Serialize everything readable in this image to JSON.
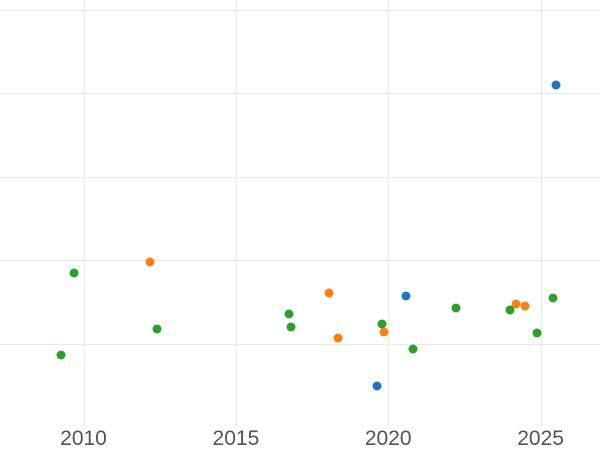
{
  "chart_data": {
    "type": "scatter",
    "title": "",
    "xlabel": "",
    "ylabel": "",
    "grid": true,
    "legend": "none",
    "background_color": "#ffffff",
    "gridline_color": "#e9e9e9",
    "tick_label_color": "#545454",
    "x_ticks": [
      {
        "value": 2010,
        "label": "2010"
      },
      {
        "value": 2015,
        "label": "2015"
      },
      {
        "value": 2020,
        "label": "2020"
      },
      {
        "value": 2025,
        "label": "2025"
      }
    ],
    "y_tick_labels": [],
    "y_axis_note": "y-axis tick labels not visible (cropped out of frame); y values given in gridline units, bottom visible gridline = 0, one unit per gridline step",
    "x_range": [
      2007.26,
      2026.95
    ],
    "y_range": [
      -0.99,
      4.12
    ],
    "y_gridlines": [
      0,
      1,
      2,
      3,
      4
    ],
    "marker_diameter_px": 9,
    "series": [
      {
        "name": "series-blue",
        "color": "#1f77b4",
        "points": [
          {
            "x": 2019.62,
            "y": -0.51
          },
          {
            "x": 2020.59,
            "y": 0.57
          },
          {
            "x": 2025.5,
            "y": 3.1
          }
        ]
      },
      {
        "name": "series-orange",
        "color": "#ff7f0e",
        "points": [
          {
            "x": 2012.17,
            "y": 0.98
          },
          {
            "x": 2018.07,
            "y": 0.6
          },
          {
            "x": 2018.36,
            "y": 0.07
          },
          {
            "x": 2019.87,
            "y": 0.14
          },
          {
            "x": 2024.18,
            "y": 0.47
          },
          {
            "x": 2024.49,
            "y": 0.45
          }
        ]
      },
      {
        "name": "series-green",
        "color": "#2ca02c",
        "points": [
          {
            "x": 2009.27,
            "y": -0.14
          },
          {
            "x": 2009.7,
            "y": 0.84
          },
          {
            "x": 2012.4,
            "y": 0.18
          },
          {
            "x": 2016.74,
            "y": 0.35
          },
          {
            "x": 2016.8,
            "y": 0.2
          },
          {
            "x": 2019.81,
            "y": 0.23
          },
          {
            "x": 2020.82,
            "y": -0.06
          },
          {
            "x": 2022.22,
            "y": 0.43
          },
          {
            "x": 2023.99,
            "y": 0.4
          },
          {
            "x": 2024.88,
            "y": 0.13
          },
          {
            "x": 2025.39,
            "y": 0.55
          }
        ]
      }
    ]
  }
}
